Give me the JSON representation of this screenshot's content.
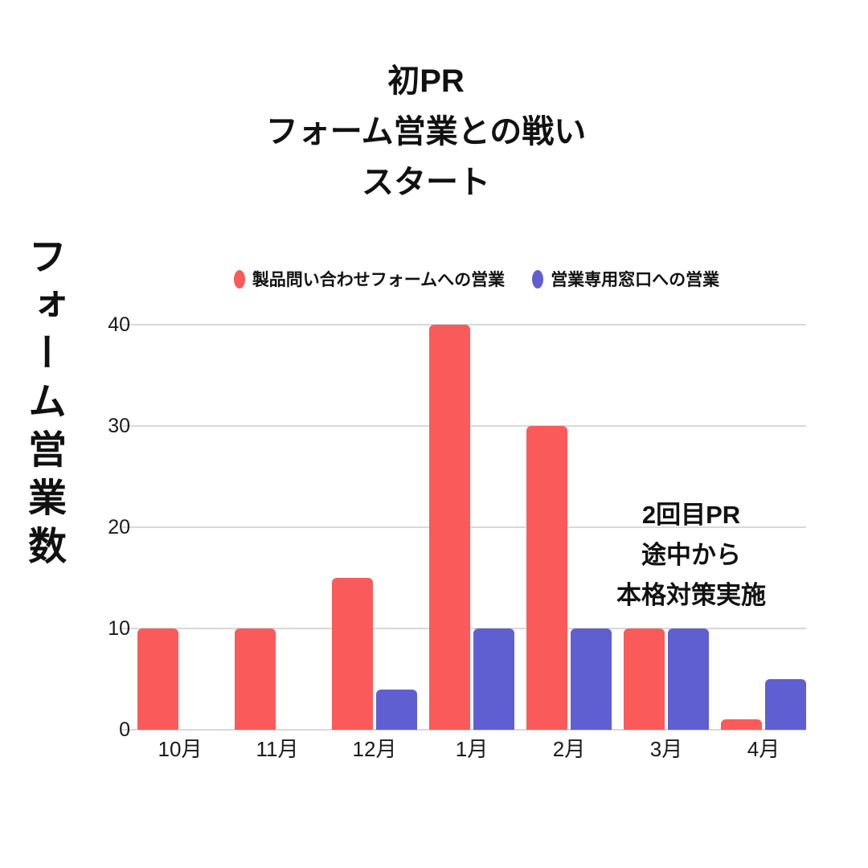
{
  "page": {
    "background": "#ffffff"
  },
  "title": {
    "lines": [
      "初PR",
      "フォーム営業との戦い",
      "スタート"
    ]
  },
  "y_axis_label": "フォーム営業数",
  "annotation": {
    "lines": [
      "2回目PR",
      "途中から",
      "本格対策実施"
    ]
  },
  "legend": {
    "position": "top"
  },
  "chart_data": {
    "type": "bar",
    "categories": [
      "10月",
      "11月",
      "12月",
      "1月",
      "2月",
      "3月",
      "4月"
    ],
    "series": [
      {
        "name": "製品問い合わせフォームへの営業",
        "color": "#fb5a5a",
        "values": [
          10,
          10,
          15,
          40,
          30,
          10,
          1
        ]
      },
      {
        "name": "営業専用窓口への営業",
        "color": "#5f5fd2",
        "values": [
          0,
          0,
          4,
          10,
          10,
          10,
          5
        ]
      }
    ],
    "title": "初PR フォーム営業との戦い スタート",
    "xlabel": "",
    "ylabel": "フォーム営業数",
    "yticks": [
      0,
      10,
      20,
      30,
      40
    ],
    "ylim": [
      0,
      40
    ],
    "grid": true,
    "gridline_color": "#d9d9d9",
    "legend_position": "top"
  }
}
